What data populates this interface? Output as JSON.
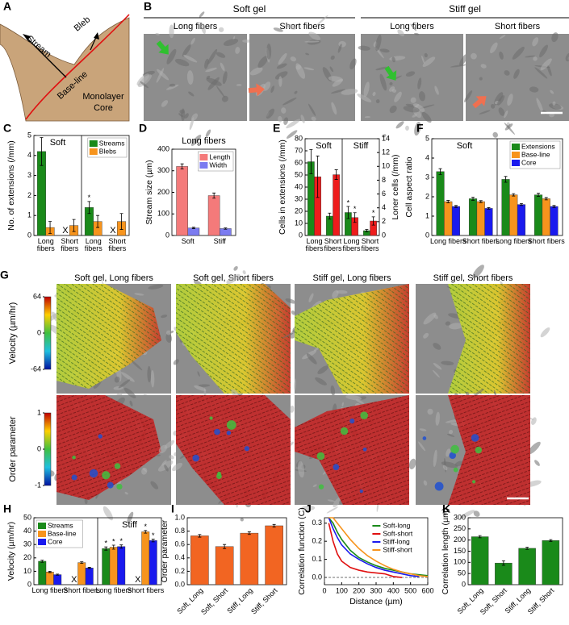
{
  "panel_a": {
    "label": "A",
    "stream": "Stream",
    "bleb": "Bleb",
    "baseline": "Base-line",
    "core": [
      "Monolayer",
      "Core"
    ]
  },
  "panel_b": {
    "label": "B",
    "groups": [
      {
        "name": "Soft gel",
        "panels": [
          "Long fibers",
          "Short fibers"
        ]
      },
      {
        "name": "Stiff gel",
        "panels": [
          "Long fibers",
          "Short fibers"
        ]
      }
    ]
  },
  "panel_g": {
    "label": "G",
    "titles": [
      "Soft gel, Long fibers",
      "Soft gel, Short fibers",
      "Stiff gel, Long fibers",
      "Stiff gel, Short fibers"
    ],
    "colorbars": [
      {
        "label": "Velocity (µm/hr)",
        "lim": [
          -64,
          64
        ],
        "ticks": [
          64,
          0,
          -64
        ]
      },
      {
        "label": "Order parameter",
        "lim": [
          -1,
          1
        ],
        "ticks": [
          1,
          0,
          -1
        ]
      }
    ]
  },
  "chart_data": [
    {
      "panel": "C",
      "type": "bar",
      "y_label": "No. of extensions (/mm)",
      "groups": [
        "Soft",
        "Stiff"
      ],
      "categories": [
        "Long fibers",
        "Short fibers",
        "Long fibers",
        "Short fibers"
      ],
      "missing_marker": "X",
      "series": [
        {
          "name": "Streams",
          "color": "#1a8a1a",
          "values": [
            4.2,
            null,
            1.4,
            null
          ],
          "errors": [
            0.7,
            null,
            0.3,
            null
          ],
          "significance": [
            null,
            null,
            "*",
            null
          ]
        },
        {
          "name": "Blebs",
          "color": "#f7941d",
          "values": [
            0.4,
            0.5,
            0.7,
            0.7
          ],
          "errors": [
            0.3,
            0.3,
            0.3,
            0.4
          ]
        }
      ],
      "ylim": [
        0,
        5
      ],
      "yticks": [
        0,
        1,
        2,
        3,
        4,
        5
      ],
      "legend": "upper right"
    },
    {
      "panel": "D",
      "type": "bar",
      "title": "Long fibers",
      "y_label": "Stream size (µm)",
      "categories": [
        "Soft",
        "Stiff"
      ],
      "series": [
        {
          "name": "Length",
          "color": "#f47a7a",
          "values": [
            320,
            185
          ],
          "errors": [
            12,
            12
          ]
        },
        {
          "name": "Width",
          "color": "#7b7bf0",
          "values": [
            35,
            32
          ],
          "errors": [
            3,
            3
          ]
        }
      ],
      "ylim": [
        0,
        400
      ],
      "yticks": [
        0,
        100,
        200,
        300,
        400
      ],
      "legend": "upper right"
    },
    {
      "panel": "E",
      "type": "bar",
      "y_label": "Cells in extensions (/mm)",
      "y_label_color": "#1a8a1a",
      "y2_label": "Loner cells (/mm)",
      "y2_label_color": "#ee1c1c",
      "groups": [
        "Soft",
        "Stiff"
      ],
      "categories": [
        "Long fibers",
        "Short fibers",
        "Long fibers",
        "Short fibers"
      ],
      "series": [
        {
          "color": "#1a8a1a",
          "values": [
            61,
            16,
            19,
            4
          ],
          "errors": [
            10,
            2.5,
            5,
            1
          ],
          "significance": [
            null,
            null,
            "*",
            null
          ]
        },
        {
          "color": "#ee1c1c",
          "axis": "y2",
          "values": [
            8.5,
            8.8,
            2.6,
            2.1
          ],
          "errors": [
            3,
            0.7,
            0.7,
            0.6
          ],
          "significance": [
            null,
            null,
            "*",
            "*"
          ]
        }
      ],
      "ylim": [
        0,
        80
      ],
      "yticks": [
        0,
        10,
        20,
        30,
        40,
        50,
        60,
        70,
        80
      ],
      "y2lim": [
        0,
        14
      ],
      "y2ticks": [
        0,
        2,
        4,
        6,
        8,
        10,
        12,
        14
      ]
    },
    {
      "panel": "F",
      "type": "bar",
      "y_label": "Cell aspect ratio",
      "groups": [
        "Soft",
        "Stiff"
      ],
      "categories": [
        "Long fibers",
        "Short fibers",
        "Long fibers",
        "Short fibers"
      ],
      "series": [
        {
          "name": "Extensions",
          "color": "#1a8a1a",
          "values": [
            3.3,
            1.9,
            2.9,
            2.1
          ],
          "errors": [
            0.15,
            0.08,
            0.15,
            0.08
          ]
        },
        {
          "name": "Base-line",
          "color": "#f7941d",
          "values": [
            1.75,
            1.75,
            2.1,
            1.9
          ],
          "errors": [
            0.06,
            0.05,
            0.06,
            0.06
          ]
        },
        {
          "name": "Core",
          "color": "#1a1aee",
          "values": [
            1.5,
            1.4,
            1.6,
            1.5
          ],
          "errors": [
            0.05,
            0.04,
            0.05,
            0.05
          ]
        }
      ],
      "ylim": [
        0,
        5
      ],
      "yticks": [
        0,
        1,
        2,
        3,
        4,
        5
      ],
      "legend": "upper right"
    },
    {
      "panel": "H",
      "type": "bar",
      "y_label": "Velocity (µm/hr)",
      "groups": [
        "Soft",
        "Stiff"
      ],
      "categories": [
        "Long fibers",
        "Short fibers",
        "Long fibers",
        "Short fibers"
      ],
      "missing_marker": "X",
      "series": [
        {
          "name": "Streams",
          "color": "#1a8a1a",
          "values": [
            17.5,
            null,
            27,
            null
          ],
          "errors": [
            0.8,
            null,
            1.2,
            null
          ],
          "significance": [
            null,
            null,
            "*",
            null
          ]
        },
        {
          "name": "Base-line",
          "color": "#f7941d",
          "values": [
            9.5,
            16.5,
            28,
            39.5
          ],
          "errors": [
            0.5,
            0.6,
            1.5,
            1
          ],
          "significance": [
            null,
            null,
            "*",
            "*"
          ]
        },
        {
          "name": "Core",
          "color": "#1a1aee",
          "values": [
            7.5,
            12.5,
            28.5,
            33
          ],
          "errors": [
            0.4,
            0.5,
            1.2,
            1
          ],
          "significance": [
            null,
            null,
            "*",
            "*"
          ]
        }
      ],
      "ylim": [
        0,
        50
      ],
      "yticks": [
        0,
        10,
        20,
        30,
        40,
        50
      ],
      "legend": "upper left"
    },
    {
      "panel": "I",
      "type": "bar",
      "y_label": "Order parameter",
      "categories": [
        "Soft, Long",
        "Soft, Short",
        "Stiff, Long",
        "Stiff, Short"
      ],
      "series": [
        {
          "color": "#f26522",
          "values": [
            0.73,
            0.57,
            0.77,
            0.88
          ],
          "errors": [
            0.02,
            0.03,
            0.02,
            0.02
          ]
        }
      ],
      "ylim": [
        0,
        1
      ],
      "yticks": [
        {
          "value": 0,
          "label": "0.0"
        },
        {
          "value": 0.2,
          "label": "0.2"
        },
        {
          "value": 0.4,
          "label": "0.4"
        },
        {
          "value": 0.6,
          "label": "0.6"
        },
        {
          "value": 0.8,
          "label": "0.8"
        },
        {
          "value": 1,
          "label": "1.0"
        }
      ]
    },
    {
      "panel": "J",
      "type": "line",
      "x_label": "Distance (µm)",
      "y_label": "Correlation function (C)",
      "x": [
        25,
        50,
        75,
        100,
        150,
        200,
        250,
        300,
        350,
        400,
        450,
        500,
        550,
        600
      ],
      "series": [
        {
          "name": "Soft-long",
          "color": "#1a8a1a",
          "values": [
            0.33,
            0.3,
            0.25,
            0.21,
            0.15,
            0.11,
            0.085,
            0.065,
            0.05,
            0.04,
            0.03,
            0.02,
            0.015,
            0.01
          ]
        },
        {
          "name": "Soft-short",
          "color": "#e01010",
          "values": [
            0.3,
            0.2,
            0.13,
            0.09,
            0.055,
            0.04,
            0.03,
            0.025,
            0.02,
            0.005,
            0.0,
            null,
            null,
            null
          ]
        },
        {
          "name": "Stiff-long",
          "color": "#1a1aee",
          "values": [
            0.33,
            0.27,
            0.22,
            0.18,
            0.13,
            0.1,
            0.075,
            0.055,
            0.04,
            0.03,
            0.02,
            0.01,
            0.005,
            null
          ]
        },
        {
          "name": "Stiff-short",
          "color": "#f7941d",
          "values": [
            0.33,
            0.33,
            0.3,
            0.27,
            0.21,
            0.16,
            0.12,
            0.09,
            0.065,
            0.045,
            0.03,
            0.02,
            0.01,
            0.005
          ]
        }
      ],
      "xlim": [
        0,
        600
      ],
      "xticks": [
        0,
        100,
        200,
        300,
        400,
        500,
        600
      ],
      "ylim": [
        -0.04,
        0.33
      ],
      "yticks": [
        {
          "value": 0,
          "label": "0.0"
        },
        {
          "value": 0.1,
          "label": "0.1"
        },
        {
          "value": 0.2,
          "label": "0.2"
        },
        {
          "value": 0.3,
          "label": "0.3"
        }
      ],
      "zero_line": true,
      "legend": "upper right"
    },
    {
      "panel": "K",
      "type": "bar",
      "y_label": "Correlation length (µm)",
      "categories": [
        "Soft, Long",
        "Soft, Short",
        "Stiff, Long",
        "Stiff, Short"
      ],
      "series": [
        {
          "color": "#1a8a1a",
          "values": [
            215,
            97,
            163,
            198
          ],
          "errors": [
            5,
            10,
            5,
            4
          ]
        }
      ],
      "ylim": [
        0,
        300
      ],
      "yticks": [
        0,
        50,
        100,
        150,
        200,
        250,
        300
      ]
    }
  ]
}
